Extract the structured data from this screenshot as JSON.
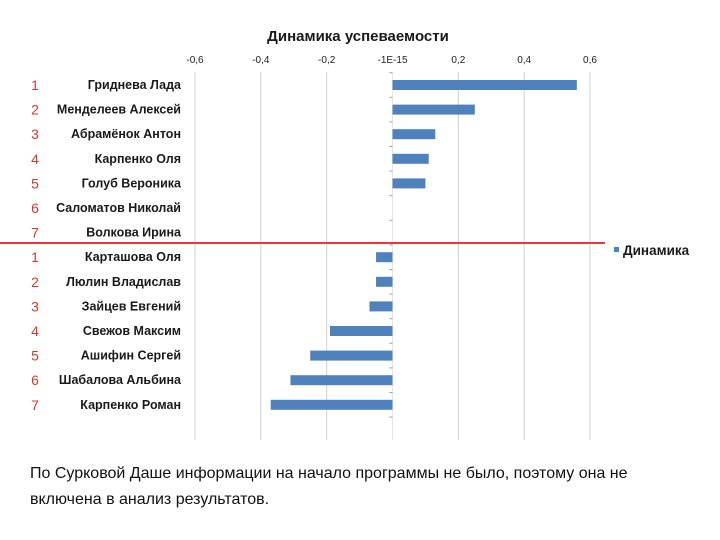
{
  "chart_data": {
    "type": "bar",
    "orientation": "horizontal",
    "title": "Динамика успеваемости",
    "categories": [
      "Гриднева Лада",
      "Менделеев Алексей",
      "Абрамёнок Антон",
      "Карпенко Оля",
      "Голуб Вероника",
      "Саломатов Николай",
      "Волкова Ирина",
      "Карташова Оля",
      "Люлин Владислав",
      "Зайцев Евгений",
      "Свежов Максим",
      "Ашифин Сергей",
      "Шабалова Альбина",
      "Карпенко Роман"
    ],
    "rank_numbers": [
      "1",
      "2",
      "3",
      "4",
      "5",
      "6",
      "7",
      "1",
      "2",
      "3",
      "4",
      "5",
      "6",
      "7"
    ],
    "series": [
      {
        "name": "Динамика",
        "values": [
          0.56,
          0.25,
          0.13,
          0.11,
          0.1,
          0,
          0,
          -0.05,
          -0.05,
          -0.07,
          -0.19,
          -0.25,
          -0.31,
          -0.37
        ]
      }
    ],
    "xlim": [
      -0.6,
      0.6
    ],
    "xtick_labels": [
      "-0,6",
      "-0,4",
      "-0,2",
      "-1E-15",
      "0,2",
      "0,4",
      "0,6"
    ],
    "xtick_values": [
      -0.6,
      -0.4,
      -0.2,
      0,
      0.2,
      0.4,
      0.6
    ],
    "grid": true,
    "legend_position": "right",
    "colors": {
      "bar": "#4f81bd",
      "divider": "#e53935",
      "rank": "#d43a2a",
      "grid": "#cfcfcf"
    }
  },
  "note": "По Сурковой Даше информации на начало программы не было, поэтому она не включена в анализ результатов."
}
